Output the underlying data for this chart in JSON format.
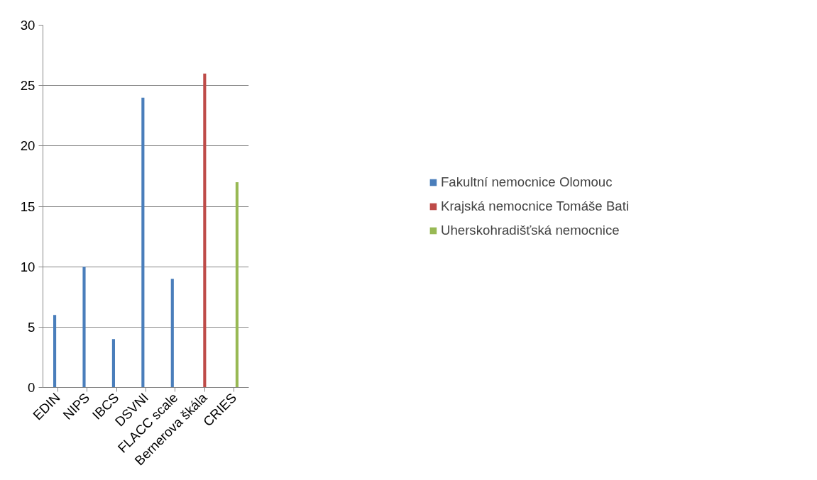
{
  "chart_data": {
    "type": "bar",
    "categories": [
      "EDIN",
      "NIPS",
      "IBCS",
      "DSVNI",
      "FLACC scale",
      "Bernerova škála",
      "CRIES"
    ],
    "series": [
      {
        "name": "Fakultní nemocnice Olomouc",
        "color": "#4a7ebb",
        "values": [
          6,
          10,
          4,
          24,
          9,
          null,
          null
        ]
      },
      {
        "name": "Krajská nemocnice Tomáše Bati",
        "color": "#be4b48",
        "values": [
          null,
          null,
          null,
          null,
          null,
          26,
          null
        ]
      },
      {
        "name": "Uherskohradišťská nemocnice",
        "color": "#98b954",
        "values": [
          null,
          null,
          null,
          null,
          null,
          null,
          17
        ]
      }
    ],
    "ylim": [
      0,
      30
    ],
    "yticks": [
      0,
      5,
      10,
      15,
      20,
      25,
      30
    ],
    "grid": "y",
    "legend": "right"
  }
}
